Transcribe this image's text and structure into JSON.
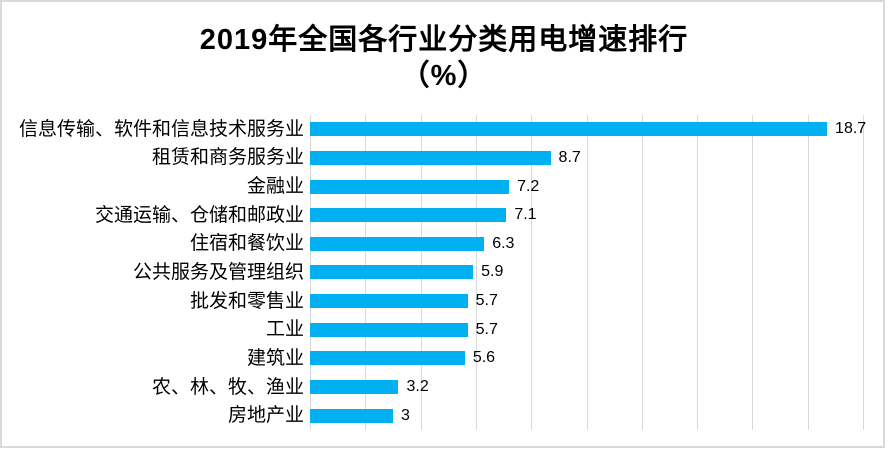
{
  "title": {
    "line1": "2019年全国各行业分类用电增速排行",
    "line2": "（%）"
  },
  "chart_data": {
    "type": "bar",
    "orientation": "horizontal",
    "title": "2019年全国各行业分类用电增速排行（%）",
    "categories": [
      "信息传输、软件和信息技术服务业",
      "租赁和商务服务业",
      "金融业",
      "交通运输、仓储和邮政业",
      "住宿和餐饮业",
      "公共服务及管理组织",
      "批发和零售业",
      "工业",
      "建筑业",
      "农、林、牧、渔业",
      "房地产业"
    ],
    "values": [
      18.7,
      8.7,
      7.2,
      7.1,
      6.3,
      5.9,
      5.7,
      5.7,
      5.6,
      3.2,
      3
    ],
    "value_labels": [
      "18.7",
      "8.7",
      "7.2",
      "7.1",
      "6.3",
      "5.9",
      "5.7",
      "5.7",
      "5.6",
      "3.2",
      "3"
    ],
    "xlabel": "",
    "ylabel": "",
    "xlim": [
      0,
      20
    ],
    "gridline_step": 2,
    "grid": true,
    "legend": "none",
    "data_labels": true,
    "colors": {
      "bar": "#00B0F0",
      "gridline": "#D9D9D9",
      "frame_border": "#D9D9D9",
      "text": "#000000"
    }
  }
}
